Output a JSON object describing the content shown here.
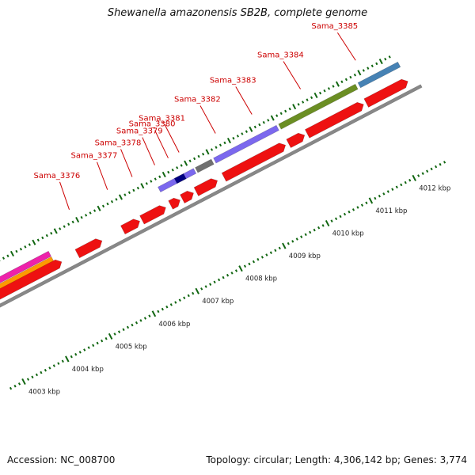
{
  "title": "Shewanella amazonensis SB2B, complete genome",
  "footer": {
    "accession": "Accession: NC_008700",
    "summary": "Topology: circular; Length: 4,306,142 bp; Genes: 3,774"
  },
  "colors": {
    "gene": "#ee1111",
    "label": "#cc0000",
    "tick": "#116611",
    "backbone": "#888888",
    "purple": "#7b68ee",
    "dark_navy": "#000080",
    "gray": "#707070",
    "olive": "#6b8e23",
    "steel_blue": "#4682b4",
    "orange": "#ff9900",
    "magenta": "#ee22aa"
  },
  "scale": {
    "kbp_start": 4002.7,
    "kbp_end": 4012.7,
    "labels": [
      "4003 kbp",
      "4004 kbp",
      "4005 kbp",
      "4006 kbp",
      "4007 kbp",
      "4008 kbp",
      "4009 kbp",
      "4010 kbp",
      "4011 kbp",
      "4012 kbp"
    ]
  },
  "tracks": {
    "genes_lower": [
      [
        4002.65,
        4003.1
      ],
      [
        4003.1,
        4004.82
      ],
      [
        4005.18,
        4005.75
      ],
      [
        4006.23,
        4006.62
      ],
      [
        4006.67,
        4007.22
      ],
      [
        4007.33,
        4007.55
      ],
      [
        4007.6,
        4007.86
      ],
      [
        4007.92,
        4008.41
      ],
      [
        4008.56,
        4009.98
      ],
      [
        4010.05,
        4010.42
      ],
      [
        4010.48,
        4011.78
      ],
      [
        4011.84,
        4012.8
      ]
    ],
    "features_upper": [
      {
        "start": 4002.65,
        "end": 4004.68,
        "color": "orange",
        "row": 2
      },
      {
        "start": 4002.65,
        "end": 4004.68,
        "color": "magenta",
        "row": 1
      },
      {
        "start": 4007.27,
        "end": 4008.09,
        "color": "purple",
        "row": 0
      },
      {
        "start": 4007.65,
        "end": 4007.86,
        "color": "dark_navy",
        "row": 0
      },
      {
        "start": 4008.13,
        "end": 4008.5,
        "color": "gray",
        "row": 0
      },
      {
        "start": 4008.55,
        "end": 4010.0,
        "color": "purple",
        "row": 0
      },
      {
        "start": 4010.05,
        "end": 4011.82,
        "color": "olive",
        "row": 0
      },
      {
        "start": 4011.88,
        "end": 4012.8,
        "color": "steel_blue",
        "row": 0
      }
    ],
    "gene_labels": [
      {
        "name": "Sama_3376",
        "kbp": 4005.45
      },
      {
        "name": "Sama_3377",
        "kbp": 4006.33
      },
      {
        "name": "Sama_3378",
        "kbp": 4006.9
      },
      {
        "name": "Sama_3379",
        "kbp": 4007.42
      },
      {
        "name": "Sama_3380",
        "kbp": 4007.73
      },
      {
        "name": "Sama_3381",
        "kbp": 4007.98
      },
      {
        "name": "Sama_3382",
        "kbp": 4008.82
      },
      {
        "name": "Sama_3383",
        "kbp": 4009.66
      },
      {
        "name": "Sama_3384",
        "kbp": 4010.78
      },
      {
        "name": "Sama_3385",
        "kbp": 4012.05
      }
    ]
  }
}
